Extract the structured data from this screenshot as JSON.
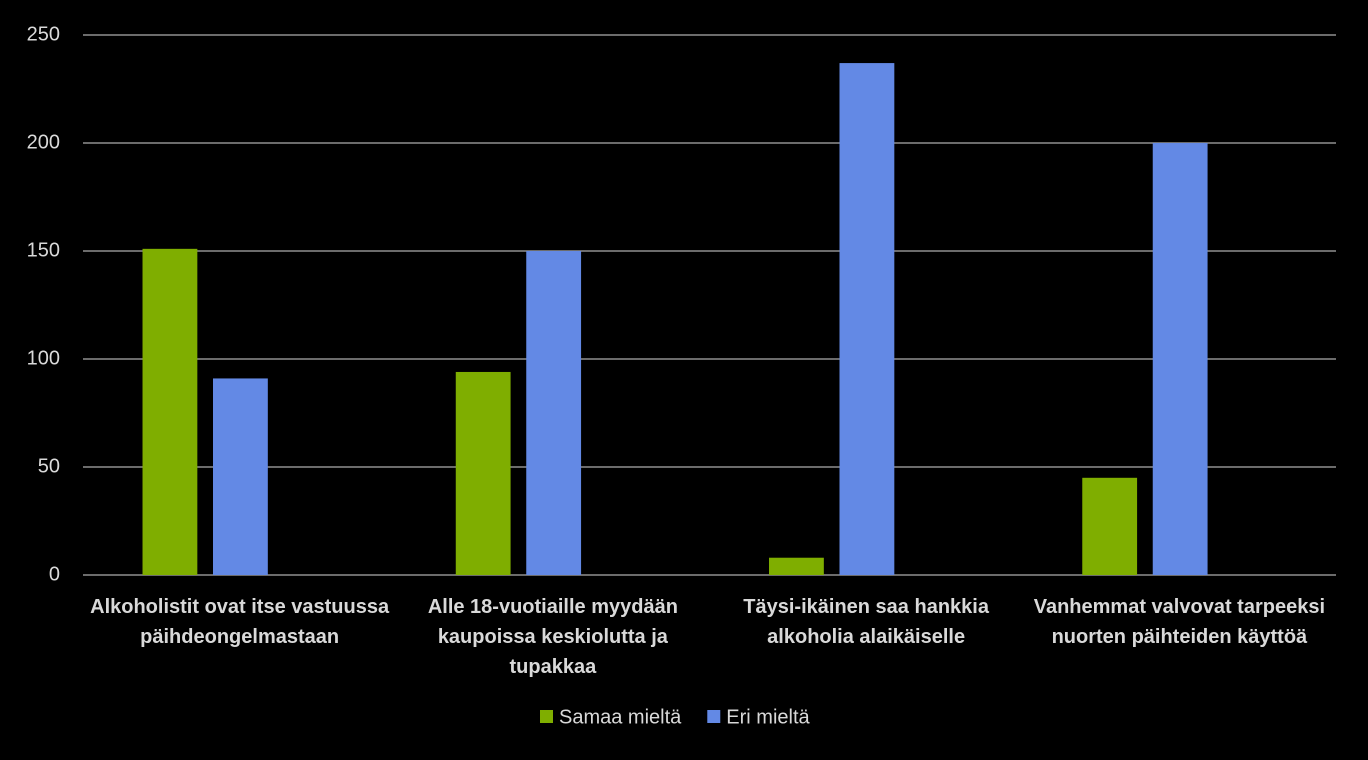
{
  "chart_data": {
    "type": "bar",
    "categories": [
      "Alkoholistit ovat itse vastuussa päihdeongelmastaan",
      "Alle 18-vuotiaille myydään kaupoissa keskiolutta ja tupakkaa",
      "Täysi-ikäinen saa hankkia alkoholia alaikäiselle",
      "Vanhemmat valvovat tarpeeksi nuorten päihteiden käyttöä"
    ],
    "series": [
      {
        "name": "Samaa mieltä",
        "color": "#7fae00",
        "values": [
          151,
          94,
          8,
          45
        ]
      },
      {
        "name": "Eri mieltä",
        "color": "#6389e5",
        "values": [
          91,
          150,
          237,
          200
        ]
      }
    ],
    "ylim": [
      0,
      250
    ],
    "yticks": [
      0,
      50,
      100,
      150,
      200,
      250
    ],
    "grid": true,
    "legend": "bottom"
  }
}
